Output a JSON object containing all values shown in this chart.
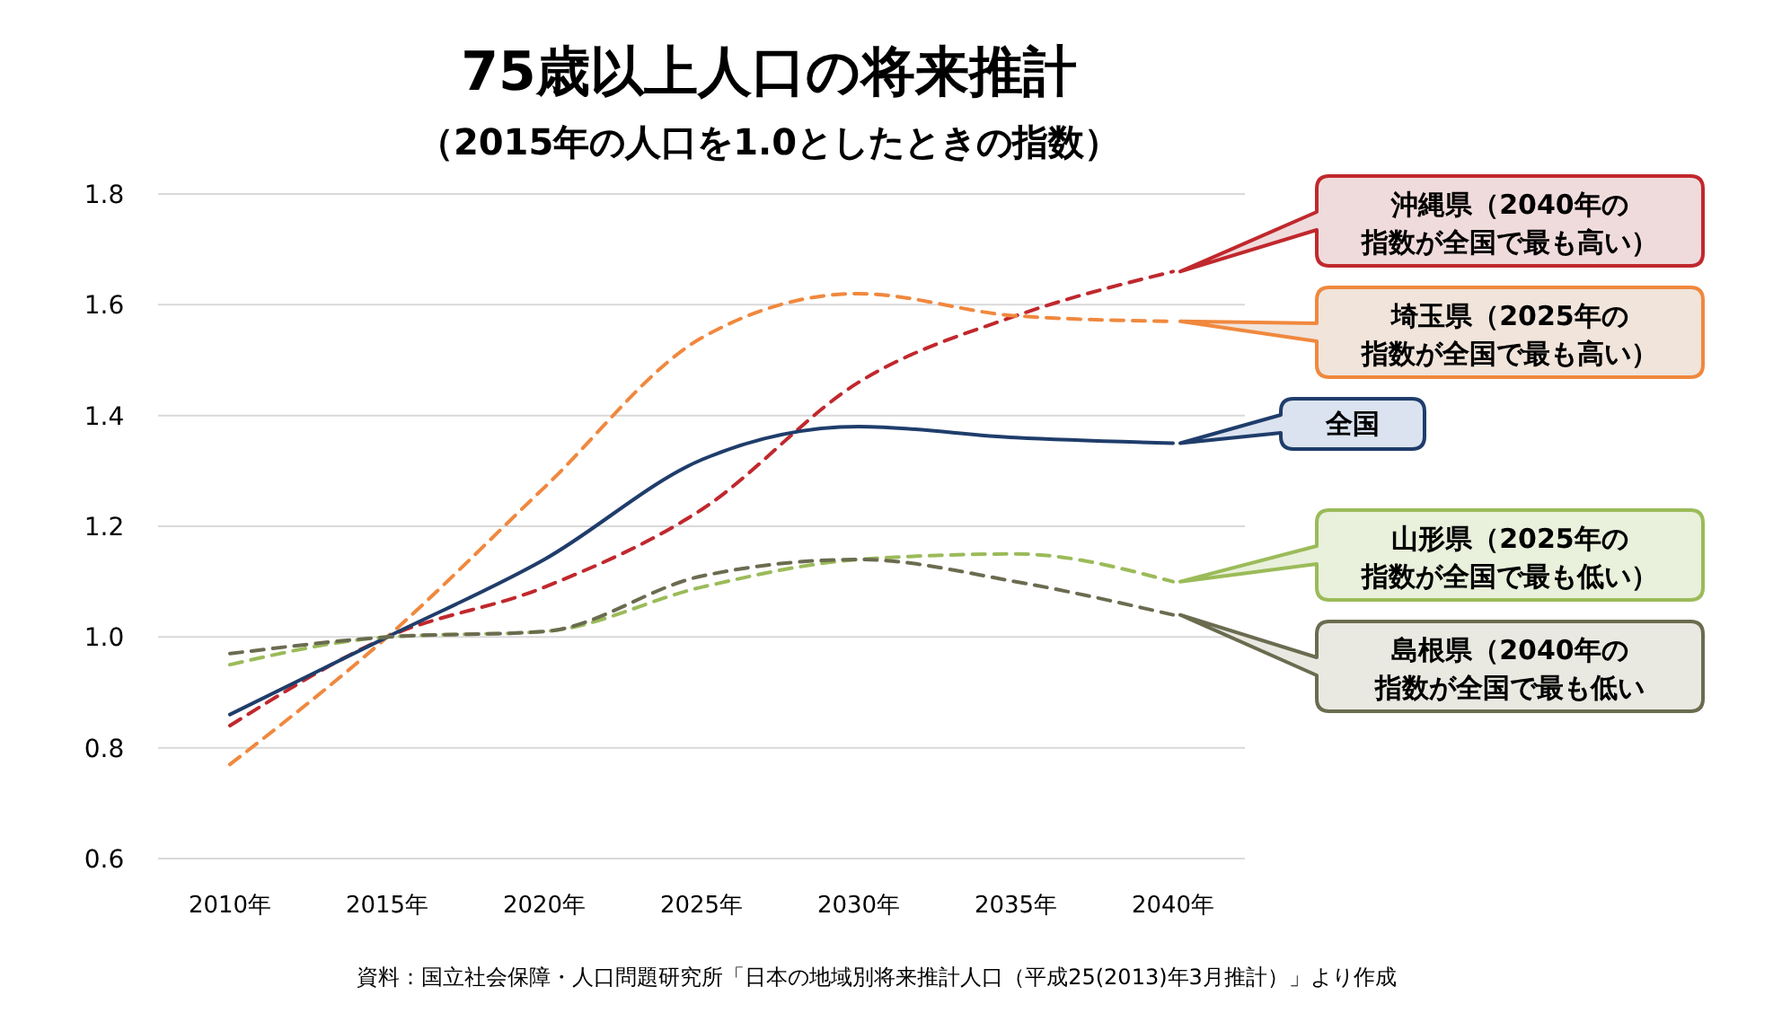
{
  "chart_data": {
    "type": "line",
    "title": "75歳以上人口の将来推計",
    "subtitle": "（2015年の人口を1.0としたときの指数）",
    "categories": [
      "2010年",
      "2015年",
      "2020年",
      "2025年",
      "2030年",
      "2035年",
      "2040年"
    ],
    "series": [
      {
        "name": "沖縄県（2040年の指数が全国で最も高い）",
        "color": "#c0282d",
        "line_style": "dashed",
        "values": [
          0.84,
          1.0,
          1.09,
          1.23,
          1.46,
          1.58,
          1.66
        ]
      },
      {
        "name": "埼玉県（2025年の指数が全国で最も高い）",
        "color": "#f0883e",
        "line_style": "dashed",
        "values": [
          0.77,
          1.0,
          1.27,
          1.54,
          1.62,
          1.58,
          1.57
        ]
      },
      {
        "name": "全国",
        "color": "#1f3d6b",
        "line_style": "solid",
        "values": [
          0.86,
          1.0,
          1.14,
          1.32,
          1.38,
          1.36,
          1.35
        ]
      },
      {
        "name": "山形県（2025年の指数が全国で最も低い）",
        "color": "#9bbb59",
        "line_style": "dashed",
        "values": [
          0.95,
          1.0,
          1.01,
          1.09,
          1.14,
          1.15,
          1.1
        ]
      },
      {
        "name": "島根県（2040年の指数が全国で最も低い",
        "color": "#6b6b50",
        "line_style": "dashed",
        "values": [
          0.97,
          1.0,
          1.01,
          1.11,
          1.14,
          1.1,
          1.04
        ]
      }
    ],
    "ylim": [
      0.6,
      1.8
    ],
    "yticks": [
      0.6,
      0.8,
      {
        "value": 1,
        "label": "1.0"
      },
      1.2,
      1.4,
      1.6,
      1.8
    ],
    "grid": "y",
    "legend": "right",
    "annotations": [
      "資料：国立社会保障・人口問題研究所「日本の地域別将来推計人口（平成25(2013)年3月推計）」より作成"
    ]
  }
}
